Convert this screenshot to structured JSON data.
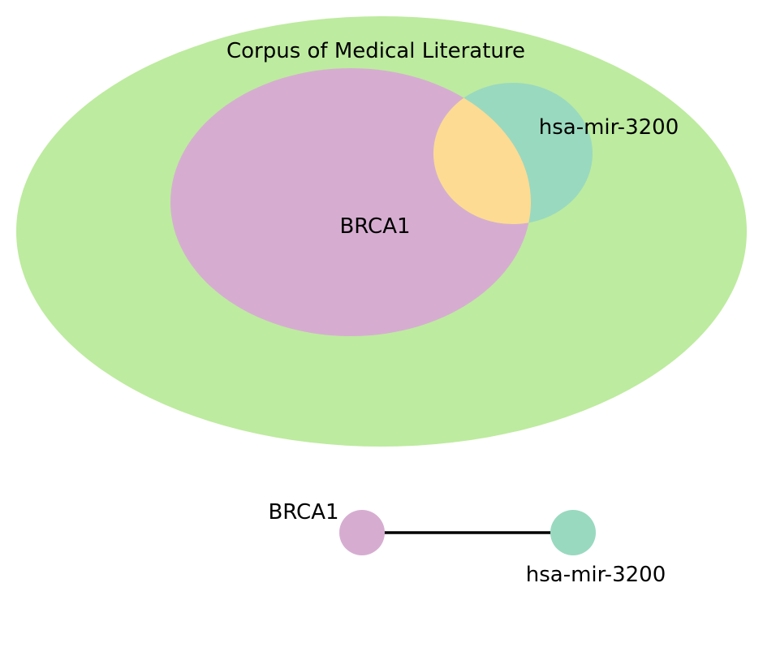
{
  "venn": {
    "corpus": {
      "label": "Corpus of Medical Literature",
      "color": "#bdeb9f"
    },
    "set_a": {
      "label": "BRCA1",
      "color": "#d6add1"
    },
    "set_b": {
      "label": "hsa-mir-3200",
      "color": "#99d9c0"
    },
    "overlap": {
      "color": "#fedb92"
    }
  },
  "network": {
    "node_a": {
      "label": "BRCA1",
      "color": "#d6add1"
    },
    "node_b": {
      "label": "hsa-mir-3200",
      "color": "#99d9c0"
    },
    "edge": {
      "color": "#000000"
    }
  }
}
